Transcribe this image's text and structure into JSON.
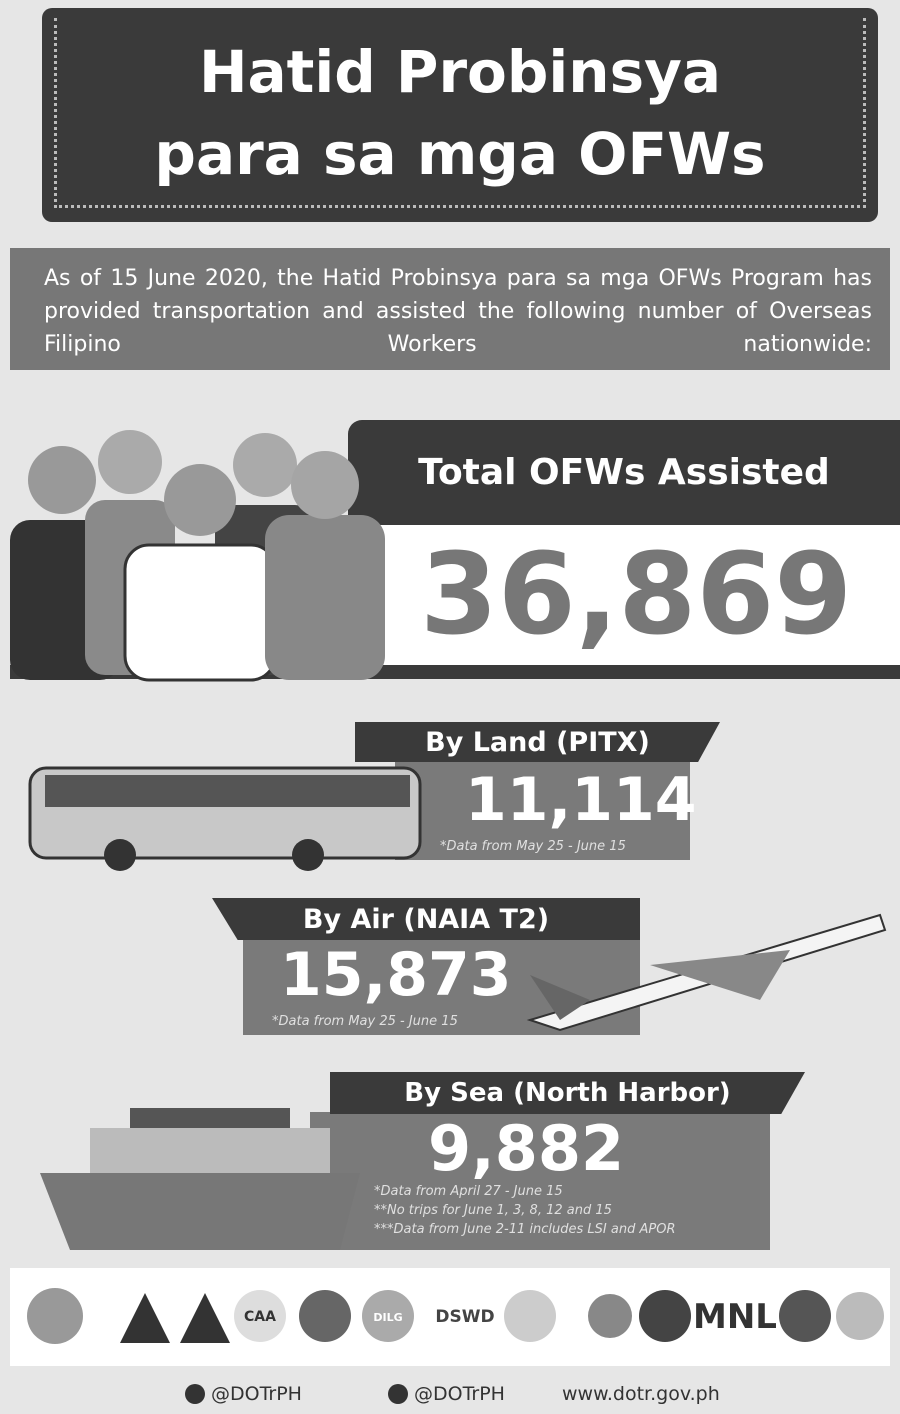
{
  "header": {
    "title_lines": [
      "Hatid Probinsya",
      "para sa mga OFWs"
    ]
  },
  "intro": "As of 15 June 2020, the Hatid Probinsya para sa mga OFWs Program has provided transportation and assisted the following number of Overseas Filipino Workers nationwide:",
  "total": {
    "label": "Total OFWs Assisted",
    "value": "36,869"
  },
  "modes": [
    {
      "label": "By Land (PITX)",
      "value": "11,114",
      "notes": [
        "*Data from May 25 - June 15"
      ]
    },
    {
      "label": "By Air (NAIA T2)",
      "value": "15,873",
      "notes": [
        "*Data from May 25 - June 15"
      ]
    },
    {
      "label": "By Sea (North Harbor)",
      "value": "9,882",
      "notes": [
        "*Data from April 27 - June 15",
        "**No trips for June 1, 3, 8, 12 and 15",
        "***Data from June 2-11 includes LSI and APOR"
      ]
    }
  ],
  "logos": [
    "CAA",
    "DILG",
    "DSWD",
    "MNL"
  ],
  "footer": {
    "facebook": "@DOTrPH",
    "twitter": "@DOTrPH",
    "website": "www.dotr.gov.ph"
  }
}
